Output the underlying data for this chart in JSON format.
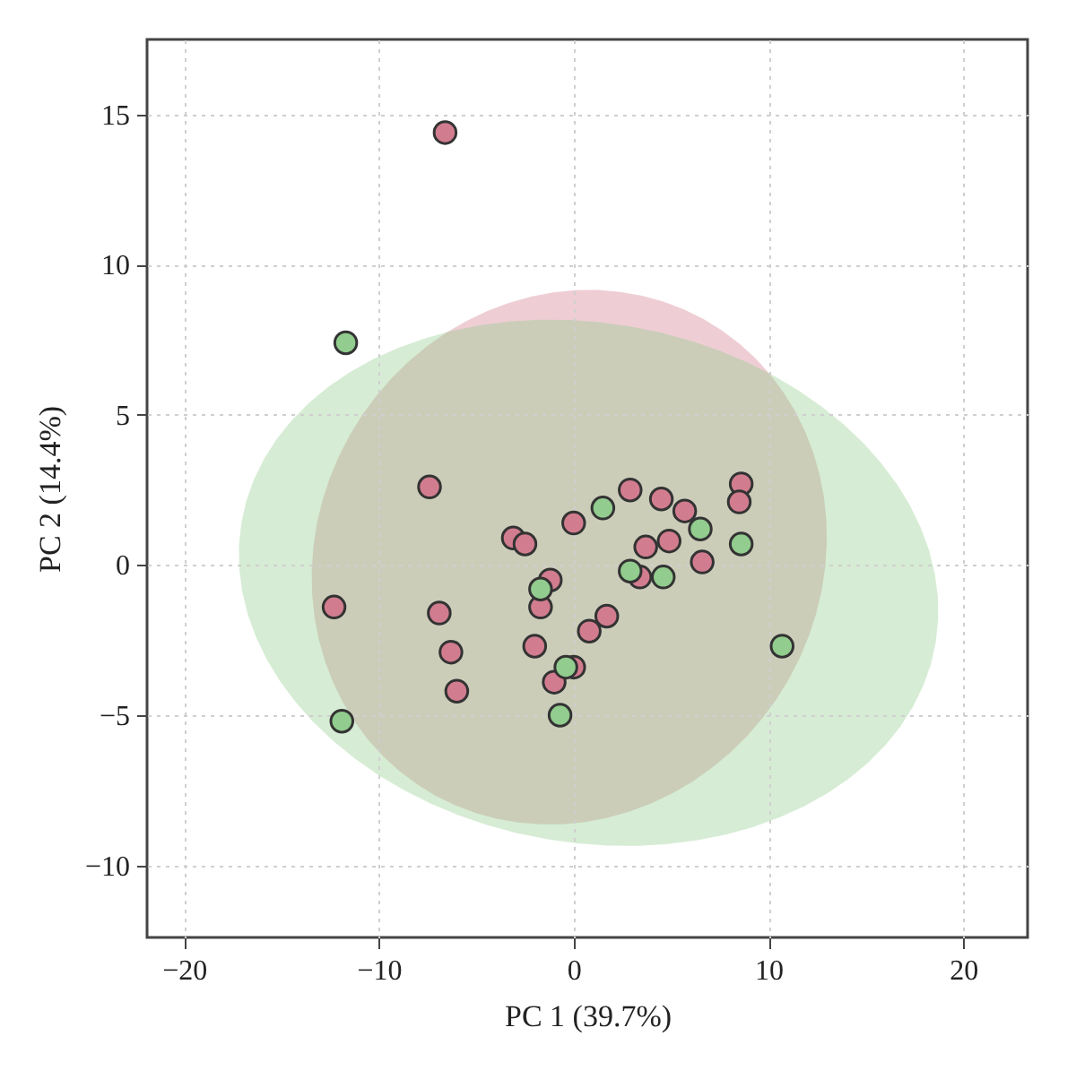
{
  "chart_data": {
    "type": "scatter",
    "xlabel": "PC 1 (39.7%)",
    "ylabel": "PC 2 (14.4%)",
    "xlim": [
      -21.9,
      23.3
    ],
    "ylim": [
      -12.4,
      17.5
    ],
    "xticks": [
      -20,
      -10,
      0,
      10,
      20
    ],
    "yticks": [
      -10,
      -5,
      0,
      5,
      10,
      15
    ],
    "grid": true,
    "marker": "circle",
    "series": [
      {
        "color": "#d27d8f",
        "x": [
          -6.6,
          -7.4,
          -12.3,
          -6.9,
          -6.3,
          -6.0,
          -3.1,
          -2.5,
          0.0,
          -1.2,
          -1.7,
          -2.0,
          -1.0,
          0.0,
          0.8,
          1.7,
          2.9,
          3.4,
          3.7,
          4.5,
          4.9,
          5.7,
          6.6,
          8.6,
          8.5
        ],
        "values": [
          14.4,
          2.6,
          -1.4,
          -1.6,
          -2.9,
          -4.2,
          0.9,
          0.7,
          1.4,
          -0.5,
          -1.4,
          -2.7,
          -3.9,
          -3.4,
          -2.2,
          -1.7,
          2.5,
          -0.4,
          0.6,
          2.2,
          0.8,
          1.8,
          0.1,
          2.7,
          2.1
        ]
      },
      {
        "color": "#92cc8e",
        "x": [
          -11.7,
          -11.9,
          -1.7,
          -0.4,
          -0.7,
          1.5,
          2.9,
          4.6,
          6.5,
          8.6,
          10.7
        ],
        "values": [
          7.4,
          -5.2,
          -0.8,
          -3.4,
          -5.0,
          1.9,
          -0.2,
          -0.4,
          1.2,
          0.7,
          -2.7
        ]
      }
    ]
  }
}
